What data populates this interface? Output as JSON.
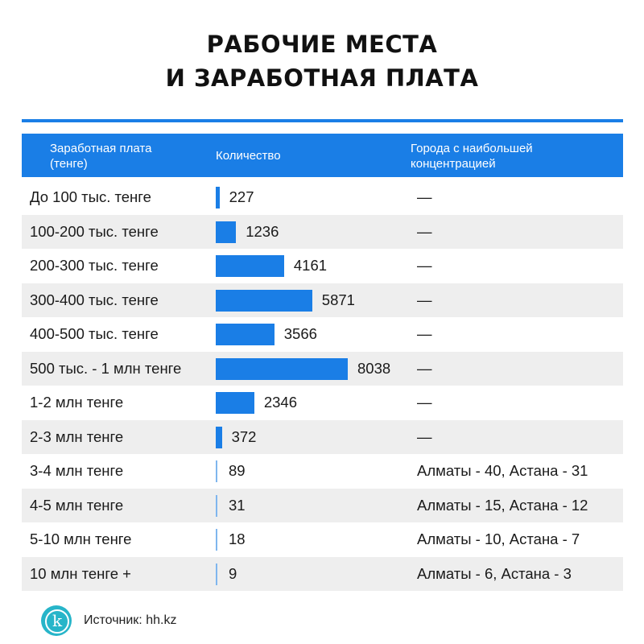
{
  "title_line1": "РАБОЧИЕ МЕСТА",
  "title_line2": "И ЗАРАБОТНАЯ ПЛАТА",
  "columns": {
    "band_line1": "Заработная плата",
    "band_line2": "(тенге)",
    "count": "Количество",
    "cities_line1": "Города с наибольшей",
    "cities_line2": "концентрацией"
  },
  "colors": {
    "accent": "#1a7ee6",
    "row_alt": "#eeeeee",
    "logo": "#27b5c9"
  },
  "chart_data": {
    "type": "bar",
    "orientation": "horizontal",
    "categories": [
      "До 100 тыс. тенге",
      "100-200 тыс. тенге",
      "200-300 тыс. тенге",
      "300-400 тыс. тенге",
      "400-500 тыс. тенге",
      "500 тыс. - 1 млн тенге",
      "1-2 млн тенге",
      "2-3 млн тенге",
      "3-4 млн тенге",
      "4-5 млн тенге",
      "5-10 млн тенге",
      "10 млн тенге +"
    ],
    "values": [
      227,
      1236,
      4161,
      5871,
      3566,
      8038,
      2346,
      372,
      89,
      31,
      18,
      9
    ],
    "cities": [
      "—",
      "—",
      "—",
      "—",
      "—",
      "—",
      "—",
      "—",
      "Алматы - 40, Астана - 31",
      "Алматы - 15, Астана - 12",
      "Алматы - 10, Астана - 7",
      "Алматы - 6, Астана - 3"
    ]
  },
  "footer": {
    "logo_letter": "k",
    "source_label": "Источник:",
    "source_value": "hh.kz"
  }
}
